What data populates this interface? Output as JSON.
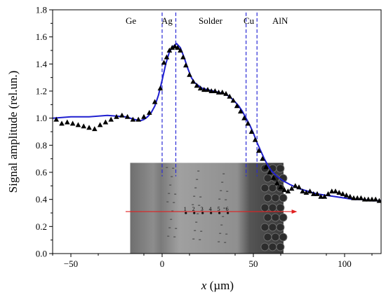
{
  "chart_data": {
    "type": "scatter",
    "xlabel_var": "x",
    "xlabel_unit": "(µm)",
    "ylabel": "Signal amplitude (rel.un.)",
    "xlim": [
      -60,
      120
    ],
    "ylim": [
      0.0,
      1.8
    ],
    "xticks": [
      -50,
      0,
      50,
      100
    ],
    "yticks": [
      0.0,
      0.2,
      0.4,
      0.6,
      0.8,
      1.0,
      1.2,
      1.4,
      1.6,
      1.8
    ],
    "xtick_labels": [
      "−50",
      "0",
      "50",
      "100"
    ],
    "ytick_labels": [
      "0.0",
      "0.2",
      "0.4",
      "0.6",
      "0.8",
      "1.0",
      "1.2",
      "1.4",
      "1.6",
      "1.8"
    ],
    "grid": false,
    "colors": {
      "measured": "#000000",
      "fit": "#1f1fd0",
      "boundary": "#2a2ad6",
      "scan_line": "#e02020",
      "inset_dark": "#4a4a4a",
      "inset_light": "#8a8a8a"
    },
    "region_labels": [
      "Ge",
      "Ag",
      "Solder",
      "Cu",
      "AlN"
    ],
    "boundaries_x": [
      0.0,
      7.5,
      46.0,
      52.0
    ],
    "inset_markers": [
      "1",
      "2",
      "3",
      "4",
      "5",
      "6"
    ],
    "series": [
      {
        "marker": "triangle",
        "x": [
          -58,
          -55,
          -52,
          -49,
          -46,
          -43,
          -40,
          -37,
          -34,
          -31,
          -28,
          -25,
          -22,
          -19,
          -16,
          -13,
          -10,
          -7,
          -4,
          -1,
          1,
          2.5,
          4,
          5.5,
          7,
          8.5,
          10,
          11.5,
          13,
          15,
          17,
          19,
          21,
          23,
          25,
          27,
          29,
          31,
          33,
          35,
          37,
          39,
          41,
          43,
          45,
          47,
          49,
          51,
          53,
          55,
          57,
          59,
          61,
          63,
          65,
          67,
          69,
          71,
          73,
          75,
          77,
          79,
          81,
          83,
          85,
          87,
          89,
          91,
          93,
          95,
          97,
          99,
          101,
          103,
          105,
          107,
          109,
          111,
          113,
          115,
          117,
          119
        ],
        "y": [
          0.99,
          0.96,
          0.97,
          0.96,
          0.95,
          0.94,
          0.93,
          0.92,
          0.95,
          0.97,
          0.99,
          1.01,
          1.02,
          1.01,
          0.99,
          0.99,
          1.01,
          1.04,
          1.12,
          1.22,
          1.41,
          1.45,
          1.5,
          1.52,
          1.53,
          1.52,
          1.5,
          1.45,
          1.39,
          1.32,
          1.27,
          1.24,
          1.22,
          1.21,
          1.21,
          1.2,
          1.2,
          1.19,
          1.19,
          1.18,
          1.16,
          1.13,
          1.09,
          1.05,
          1.0,
          0.96,
          0.9,
          0.84,
          0.76,
          0.7,
          0.64,
          0.6,
          0.56,
          0.52,
          0.49,
          0.47,
          0.46,
          0.48,
          0.5,
          0.49,
          0.46,
          0.45,
          0.46,
          0.44,
          0.44,
          0.42,
          0.42,
          0.44,
          0.46,
          0.46,
          0.45,
          0.44,
          0.43,
          0.42,
          0.41,
          0.41,
          0.41,
          0.4,
          0.4,
          0.4,
          0.4,
          0.39
        ]
      },
      {
        "marker": "line",
        "x": [
          -60,
          -50,
          -40,
          -30,
          -20,
          -15,
          -12,
          -10,
          -8,
          -6,
          -4,
          -2,
          0,
          2,
          4,
          6,
          8,
          10,
          12,
          14,
          16,
          18,
          20,
          22,
          25,
          28,
          31,
          34,
          37,
          40,
          42,
          44,
          46,
          48,
          50,
          52,
          54,
          56,
          58,
          60,
          63,
          66,
          70,
          75,
          80,
          85,
          90,
          95,
          100,
          105,
          110,
          115,
          120
        ],
        "y": [
          1.0,
          1.01,
          1.01,
          1.02,
          1.01,
          0.99,
          0.98,
          0.99,
          1.01,
          1.04,
          1.09,
          1.17,
          1.28,
          1.4,
          1.49,
          1.53,
          1.55,
          1.52,
          1.45,
          1.37,
          1.3,
          1.26,
          1.24,
          1.22,
          1.21,
          1.2,
          1.19,
          1.18,
          1.16,
          1.12,
          1.09,
          1.05,
          1.0,
          0.95,
          0.89,
          0.82,
          0.76,
          0.7,
          0.65,
          0.61,
          0.57,
          0.54,
          0.51,
          0.48,
          0.46,
          0.44,
          0.43,
          0.42,
          0.41,
          0.4,
          0.4,
          0.39,
          0.39
        ]
      }
    ]
  }
}
